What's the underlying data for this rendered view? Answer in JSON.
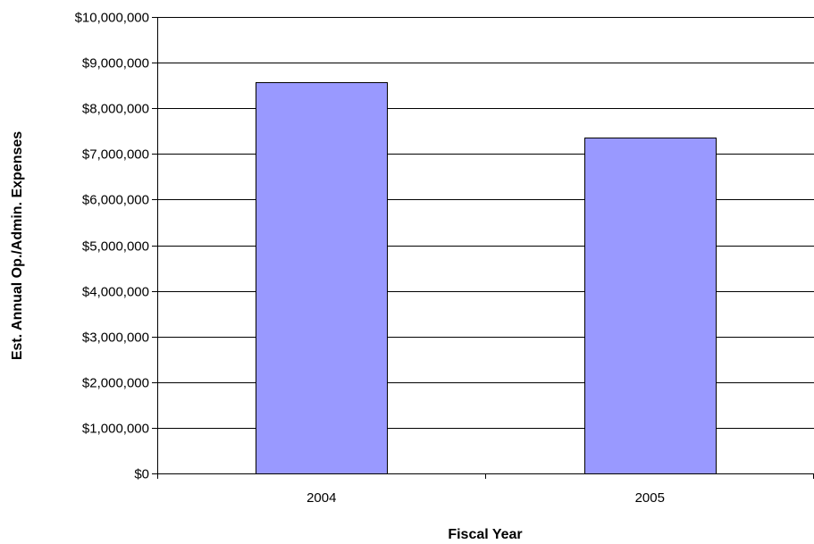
{
  "chart_data": {
    "type": "bar",
    "categories": [
      "2004",
      "2005"
    ],
    "values": [
      8580000,
      7360000
    ],
    "title": "",
    "xlabel": "Fiscal Year",
    "ylabel": "Est. Annual Op./Admin. Expenses",
    "ylim": [
      0,
      10000000
    ],
    "yticks": [
      "$0",
      "$1,000,000",
      "$2,000,000",
      "$3,000,000",
      "$4,000,000",
      "$5,000,000",
      "$6,000,000",
      "$7,000,000",
      "$8,000,000",
      "$9,000,000",
      "$10,000,000"
    ],
    "grid": true,
    "legend": "none",
    "colors": {
      "bar": "#9999ff",
      "bar_edge": "#000000",
      "grid": "#000000"
    }
  }
}
